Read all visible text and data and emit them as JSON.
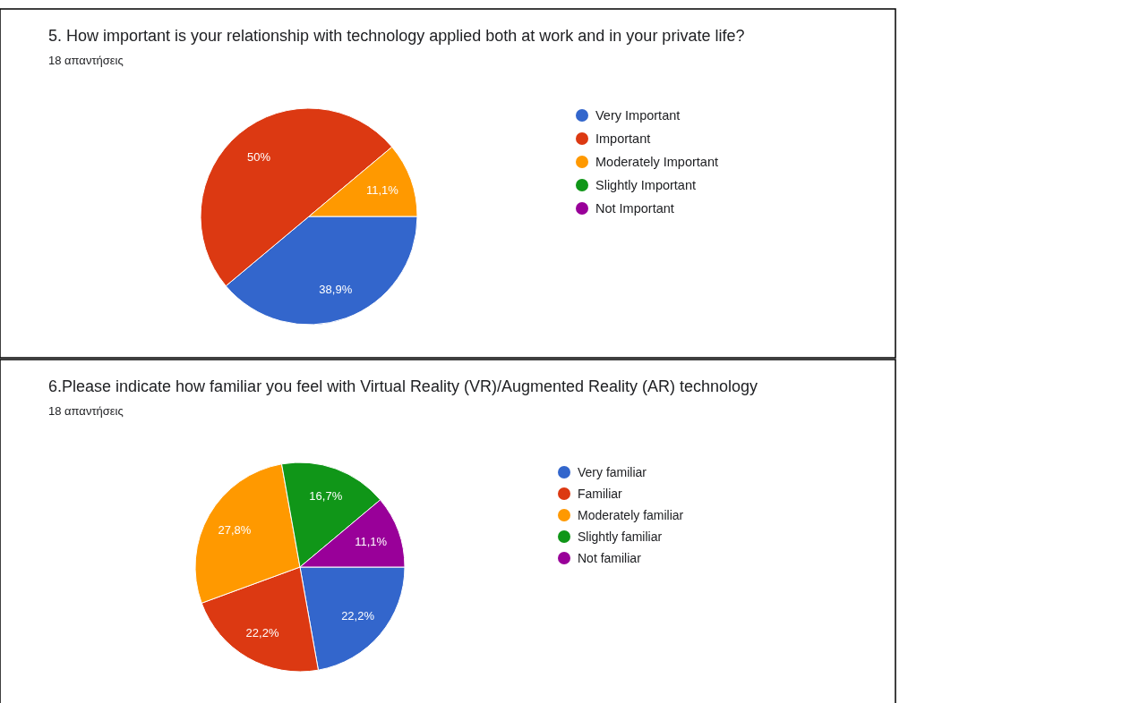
{
  "chart_data": [
    {
      "type": "pie",
      "title": "5. How important is your relationship with technology applied both at work and in your private life?",
      "subtitle": "18 απαντήσεις",
      "categories": [
        "Very Important",
        "Important",
        "Moderately Important",
        "Slightly Important",
        "Not Important"
      ],
      "values": [
        38.9,
        50,
        11.1,
        0,
        0
      ],
      "value_labels": [
        "38,9%",
        "50%",
        "11,1%",
        null,
        null
      ],
      "colors": [
        "#3366cc",
        "#dc3912",
        "#ff9900",
        "#109618",
        "#990099"
      ],
      "legend": "right"
    },
    {
      "type": "pie",
      "title": "6.Please indicate how familiar you feel with Virtual Reality (VR)/Augmented Reality (AR) technology",
      "subtitle": "18 απαντήσεις",
      "categories": [
        "Very familiar",
        "Familiar",
        "Moderately familiar",
        "Slightly familiar",
        "Not familiar"
      ],
      "values": [
        22.2,
        22.2,
        27.8,
        16.7,
        11.1
      ],
      "value_labels": [
        "22,2%",
        "22,2%",
        "27,8%",
        "16,7%",
        "11,1%"
      ],
      "colors": [
        "#3366cc",
        "#dc3912",
        "#ff9900",
        "#109618",
        "#990099"
      ],
      "legend": "right"
    }
  ]
}
